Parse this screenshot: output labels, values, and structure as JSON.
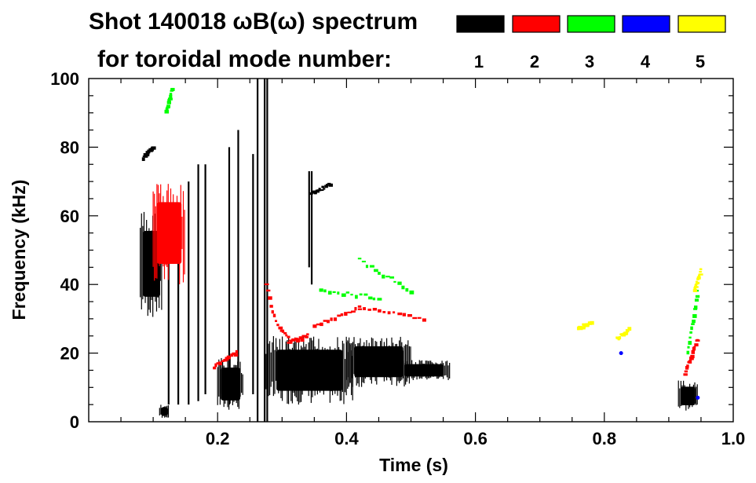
{
  "chart_data": {
    "type": "spectrogram",
    "title_line1": "Shot 140018 ωB(ω) spectrum",
    "title_line2": "for toroidal mode number:",
    "xlabel": "Time (s)",
    "ylabel": "Frequency (kHz)",
    "xlim": [
      0.0,
      1.0
    ],
    "ylim": [
      0,
      100
    ],
    "xticks": [
      0.2,
      0.4,
      0.6,
      0.8,
      1.0
    ],
    "xtick_labels": [
      "0.2",
      "0.4",
      "0.6",
      "0.8",
      "1.0"
    ],
    "yticks": [
      0,
      20,
      40,
      60,
      80,
      100
    ],
    "ytick_labels": [
      "0",
      "20",
      "40",
      "60",
      "80",
      "100"
    ],
    "legend": [
      {
        "n": "1",
        "color": "#000000"
      },
      {
        "n": "2",
        "color": "#ff0000"
      },
      {
        "n": "3",
        "color": "#00ff00"
      },
      {
        "n": "4",
        "color": "#0000ff"
      },
      {
        "n": "5",
        "color": "#ffff00"
      }
    ],
    "features": [
      {
        "mode": 1,
        "kind": "blob",
        "t": [
          0.08,
          0.115
        ],
        "f": [
          30,
          62
        ]
      },
      {
        "mode": 1,
        "kind": "blob",
        "t": [
          0.2,
          0.24
        ],
        "f": [
          3,
          19
        ]
      },
      {
        "mode": 1,
        "kind": "blob",
        "t": [
          0.275,
          0.41
        ],
        "f": [
          5,
          25
        ]
      },
      {
        "mode": 1,
        "kind": "blob",
        "t": [
          0.4,
          0.5
        ],
        "f": [
          10,
          25
        ]
      },
      {
        "mode": 1,
        "kind": "blob",
        "t": [
          0.48,
          0.56
        ],
        "f": [
          12,
          18
        ]
      },
      {
        "mode": 1,
        "kind": "blob",
        "t": [
          0.915,
          0.945
        ],
        "f": [
          3,
          12
        ]
      },
      {
        "mode": 1,
        "kind": "vline",
        "t": 0.273,
        "f": [
          0,
          100
        ]
      },
      {
        "mode": 1,
        "kind": "vline",
        "t": 0.277,
        "f": [
          0,
          100
        ]
      },
      {
        "mode": 1,
        "kind": "vline",
        "t": 0.262,
        "f": [
          0,
          100
        ]
      },
      {
        "mode": 1,
        "kind": "vline",
        "t": 0.255,
        "f": [
          8,
          78
        ]
      },
      {
        "mode": 1,
        "kind": "vline",
        "t": 0.232,
        "f": [
          10,
          85
        ]
      },
      {
        "mode": 1,
        "kind": "vline",
        "t": 0.218,
        "f": [
          5,
          80
        ]
      },
      {
        "mode": 1,
        "kind": "vline",
        "t": 0.181,
        "f": [
          8,
          75
        ]
      },
      {
        "mode": 1,
        "kind": "vline",
        "t": 0.17,
        "f": [
          6,
          75
        ]
      },
      {
        "mode": 1,
        "kind": "vline",
        "t": 0.155,
        "f": [
          5,
          70
        ]
      },
      {
        "mode": 1,
        "kind": "vline",
        "t": 0.139,
        "f": [
          5,
          60
        ]
      },
      {
        "mode": 1,
        "kind": "vline",
        "t": 0.124,
        "f": [
          5,
          55
        ]
      },
      {
        "mode": 1,
        "kind": "vline",
        "t": 0.342,
        "f": [
          45,
          73
        ]
      },
      {
        "mode": 1,
        "kind": "vline",
        "t": 0.346,
        "f": [
          40,
          73
        ]
      },
      {
        "mode": 1,
        "kind": "seg",
        "t": [
          0.345,
          0.375
        ],
        "f": [
          66,
          69
        ]
      },
      {
        "mode": 1,
        "kind": "seg",
        "t": [
          0.085,
          0.1
        ],
        "f": [
          77,
          80
        ]
      },
      {
        "mode": 1,
        "kind": "blob",
        "t": [
          0.11,
          0.125
        ],
        "f": [
          1,
          5
        ]
      },
      {
        "mode": 2,
        "kind": "blob",
        "t": [
          0.1,
          0.15
        ],
        "f": [
          40,
          70
        ]
      },
      {
        "mode": 2,
        "kind": "curve",
        "t": [
          0.275,
          0.31
        ],
        "f": [
          40,
          25
        ]
      },
      {
        "mode": 2,
        "kind": "seg",
        "t": [
          0.31,
          0.34
        ],
        "f": [
          23,
          25
        ]
      },
      {
        "mode": 2,
        "kind": "seg",
        "t": [
          0.35,
          0.42
        ],
        "f": [
          28,
          33
        ]
      },
      {
        "mode": 2,
        "kind": "seg",
        "t": [
          0.42,
          0.52
        ],
        "f": [
          33,
          30
        ]
      },
      {
        "mode": 2,
        "kind": "seg",
        "t": [
          0.195,
          0.23
        ],
        "f": [
          16,
          20
        ]
      },
      {
        "mode": 2,
        "kind": "seg",
        "t": [
          0.925,
          0.945
        ],
        "f": [
          14,
          24
        ]
      },
      {
        "mode": 3,
        "kind": "seg",
        "t": [
          0.42,
          0.5
        ],
        "f": [
          47,
          38
        ]
      },
      {
        "mode": 3,
        "kind": "seg",
        "t": [
          0.36,
          0.45
        ],
        "f": [
          38,
          36
        ]
      },
      {
        "mode": 3,
        "kind": "seg",
        "t": [
          0.12,
          0.13
        ],
        "f": [
          90,
          97
        ]
      },
      {
        "mode": 3,
        "kind": "seg",
        "t": [
          0.93,
          0.945
        ],
        "f": [
          20,
          38
        ]
      },
      {
        "mode": 4,
        "kind": "pt",
        "t": 0.826,
        "f": 20
      },
      {
        "mode": 4,
        "kind": "pt",
        "t": 0.945,
        "f": 7
      },
      {
        "mode": 5,
        "kind": "seg",
        "t": [
          0.76,
          0.78
        ],
        "f": [
          27,
          29
        ]
      },
      {
        "mode": 5,
        "kind": "seg",
        "t": [
          0.82,
          0.84
        ],
        "f": [
          24,
          27
        ]
      },
      {
        "mode": 5,
        "kind": "seg",
        "t": [
          0.94,
          0.95
        ],
        "f": [
          38,
          44
        ]
      }
    ]
  }
}
